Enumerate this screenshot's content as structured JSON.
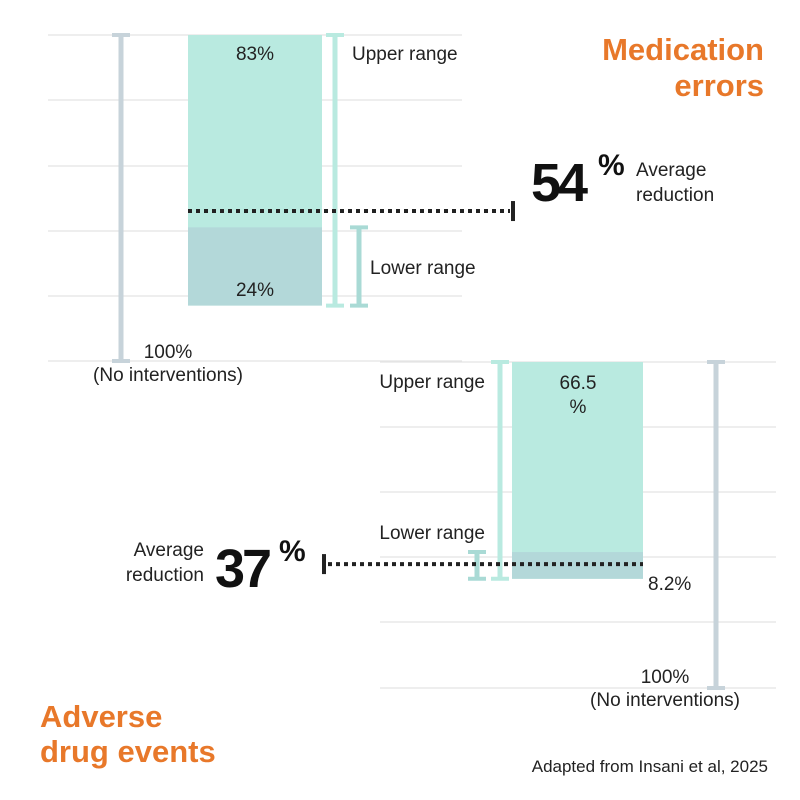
{
  "colors": {
    "accent": "#e8782a",
    "upper_fill": "#b9eae0",
    "lower_fill": "#b3d8d9",
    "grid": "#e4e4e4",
    "baseline_bar": "#c7d3da",
    "upper_bracket": "#b9eae0",
    "lower_bracket": "#a9dad5",
    "dotted": "#222222"
  },
  "source": "Adapted from Insani et al, 2025",
  "chart_data": [
    {
      "type": "bar",
      "title": "Medication errors",
      "scale": "reduction (%), 0 at top to 100 at bottom",
      "baseline": {
        "value": 100,
        "label": "100%",
        "sublabel": "(No interventions)"
      },
      "upper": {
        "value": 83,
        "label": "83%",
        "range_label": "Upper range"
      },
      "lower": {
        "value": 24,
        "label": "24%",
        "range_label": "Lower range"
      },
      "average": {
        "value": 54,
        "number": "54",
        "pct": "%",
        "label_line1": "Average",
        "label_line2": "reduction"
      }
    },
    {
      "type": "bar",
      "title_line1": "Adverse",
      "title_line2": "drug events",
      "scale": "reduction (%), 100 at top to 0 at bottom",
      "baseline": {
        "value": 100,
        "label": "100%",
        "sublabel": "(No interventions)"
      },
      "upper": {
        "value": 66.5,
        "label_line1": "66.5",
        "label_line2": "%",
        "range_label": "Upper range"
      },
      "lower": {
        "value": 8.2,
        "label": "8.2%",
        "range_label": "Lower range"
      },
      "average": {
        "value": 37,
        "number": "37",
        "pct": "%",
        "label_line1": "Average",
        "label_line2": "reduction"
      }
    }
  ],
  "top_title_line1": "Medication",
  "top_title_line2": "errors"
}
